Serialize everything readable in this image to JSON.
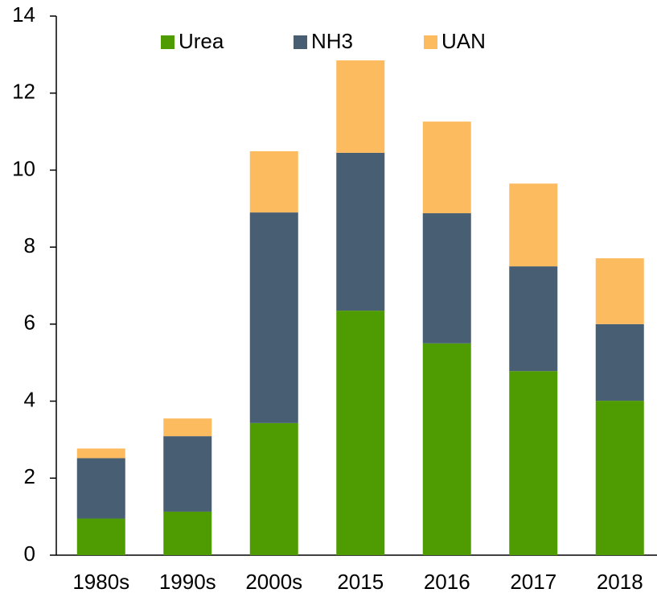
{
  "chart_data": {
    "type": "stacked_bar",
    "categories": [
      "1980s",
      "1990s",
      "2000s",
      "2015",
      "2016",
      "2017",
      "2018"
    ],
    "series": [
      {
        "name": "Urea",
        "color": "#4e9c02",
        "values": [
          0.95,
          1.13,
          3.43,
          6.35,
          5.5,
          4.78,
          4.01
        ]
      },
      {
        "name": "NH3",
        "color": "#475e73",
        "values": [
          1.57,
          1.96,
          5.47,
          4.1,
          3.38,
          2.72,
          1.99
        ]
      },
      {
        "name": "UAN",
        "color": "#fdbb5f",
        "values": [
          0.25,
          0.46,
          1.59,
          2.4,
          2.38,
          2.15,
          1.71
        ]
      }
    ],
    "ylim": [
      0,
      14
    ],
    "yticks": [
      0,
      2,
      4,
      6,
      8,
      10,
      12,
      14
    ],
    "grid": false,
    "legend": "top"
  }
}
